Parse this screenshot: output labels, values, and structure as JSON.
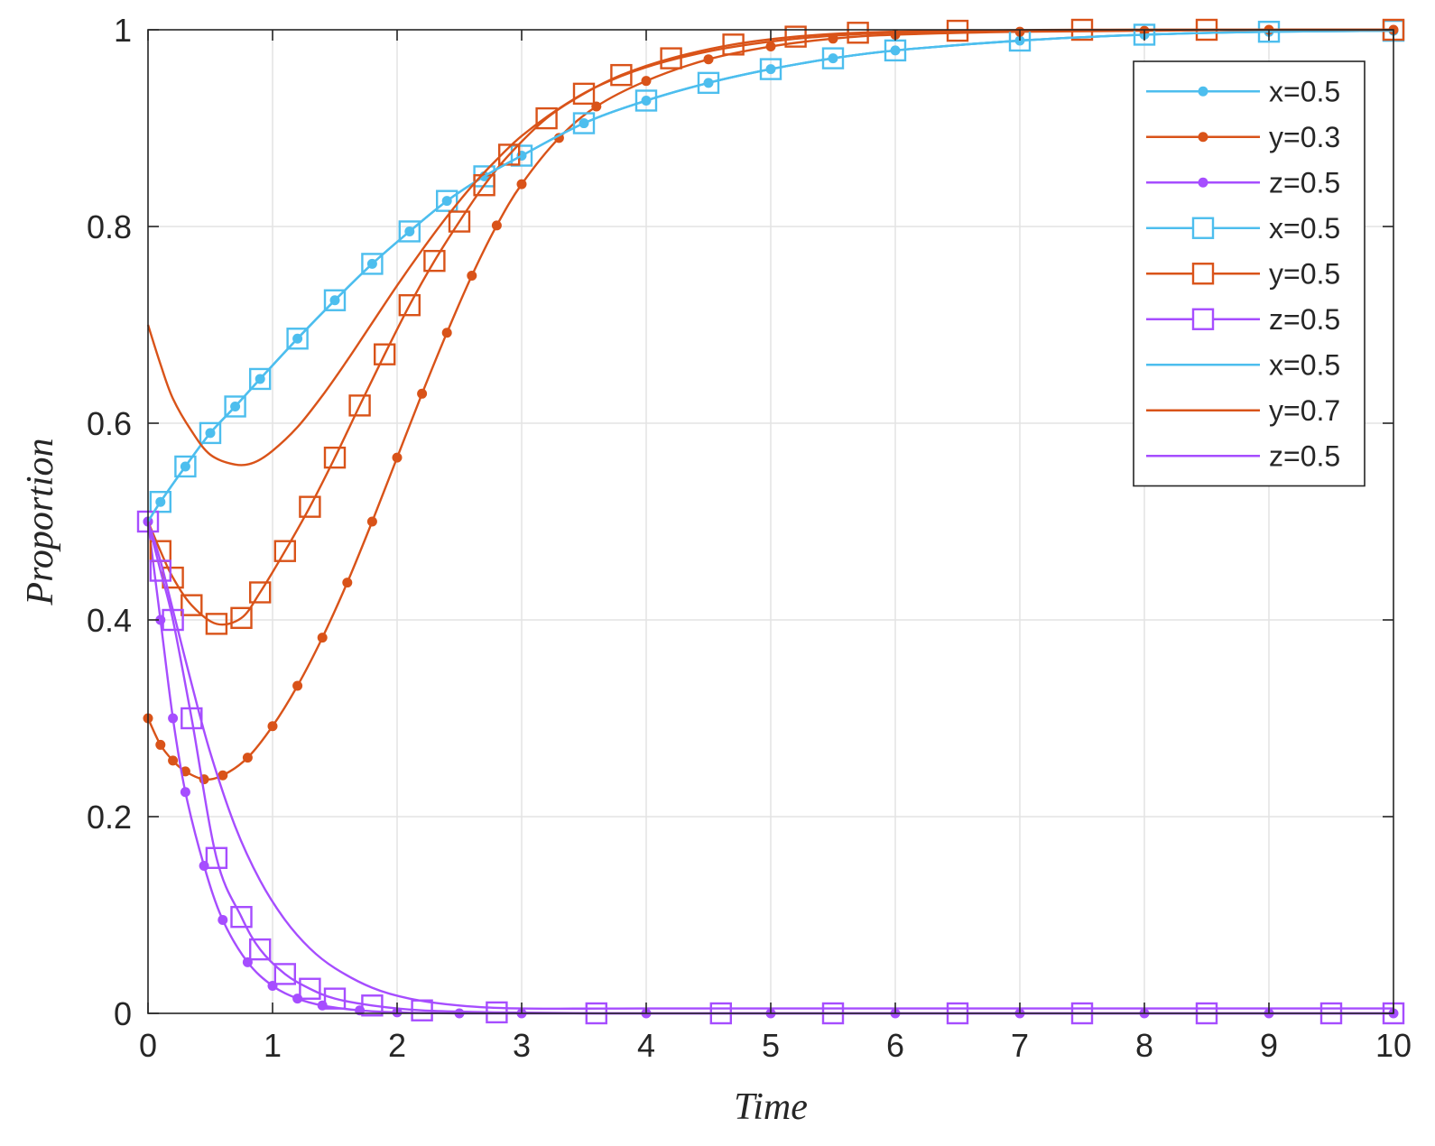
{
  "chart_data": {
    "type": "line",
    "title": "",
    "xlabel": "Time",
    "ylabel": "Proportion",
    "xlim": [
      0,
      10
    ],
    "ylim": [
      0,
      1
    ],
    "xticks": [
      0,
      1,
      2,
      3,
      4,
      5,
      6,
      7,
      8,
      9,
      10
    ],
    "yticks": [
      0,
      0.2,
      0.4,
      0.6,
      0.8,
      1
    ],
    "xtick_labels": [
      "0",
      "1",
      "2",
      "3",
      "4",
      "5",
      "6",
      "7",
      "8",
      "9",
      "10"
    ],
    "ytick_labels": [
      "0",
      "0.2",
      "0.4",
      "0.6",
      "0.8",
      "1"
    ],
    "grid": true,
    "legend_position": "top-right",
    "colors": {
      "blue": "#4DBEEE",
      "orange": "#D95319",
      "purple": "#A64DFF"
    },
    "series": [
      {
        "name": "x=0.5",
        "color": "#4DBEEE",
        "marker": "dot",
        "x": [
          0,
          0.1,
          0.3,
          0.5,
          0.7,
          0.9,
          1.2,
          1.5,
          1.8,
          2.1,
          2.4,
          2.7,
          3,
          3.5,
          4,
          4.5,
          5,
          5.5,
          6,
          7,
          8,
          9,
          10
        ],
        "y": [
          0.5,
          0.52,
          0.556,
          0.59,
          0.617,
          0.645,
          0.686,
          0.725,
          0.762,
          0.795,
          0.826,
          0.851,
          0.872,
          0.905,
          0.928,
          0.946,
          0.96,
          0.971,
          0.979,
          0.989,
          0.995,
          0.998,
          0.999
        ]
      },
      {
        "name": "y=0.3",
        "color": "#D95319",
        "marker": "dot",
        "x": [
          0,
          0.1,
          0.2,
          0.3,
          0.45,
          0.6,
          0.8,
          1,
          1.2,
          1.4,
          1.6,
          1.8,
          2,
          2.2,
          2.4,
          2.6,
          2.8,
          3,
          3.3,
          3.6,
          4,
          4.5,
          5,
          5.5,
          6,
          7,
          8,
          9,
          10
        ],
        "y": [
          0.3,
          0.273,
          0.257,
          0.246,
          0.238,
          0.242,
          0.26,
          0.292,
          0.333,
          0.382,
          0.438,
          0.5,
          0.565,
          0.63,
          0.692,
          0.75,
          0.801,
          0.843,
          0.89,
          0.922,
          0.948,
          0.97,
          0.983,
          0.991,
          0.995,
          0.998,
          0.999,
          1,
          1
        ]
      },
      {
        "name": "z=0.5",
        "color": "#A64DFF",
        "marker": "dot",
        "x": [
          0,
          0.1,
          0.2,
          0.3,
          0.45,
          0.6,
          0.8,
          1,
          1.2,
          1.4,
          1.7,
          2,
          2.5,
          3,
          4,
          5,
          6,
          7,
          8,
          9,
          10
        ],
        "y": [
          0.5,
          0.4,
          0.3,
          0.225,
          0.15,
          0.095,
          0.052,
          0.028,
          0.015,
          0.008,
          0.003,
          0.001,
          0,
          0,
          0,
          0,
          0,
          0,
          0,
          0,
          0
        ]
      },
      {
        "name": "x=0.5",
        "color": "#4DBEEE",
        "marker": "square",
        "x": [
          0,
          0.1,
          0.3,
          0.5,
          0.7,
          0.9,
          1.2,
          1.5,
          1.8,
          2.1,
          2.4,
          2.7,
          3,
          3.5,
          4,
          4.5,
          5,
          5.5,
          6,
          7,
          8,
          9,
          10
        ],
        "y": [
          0.5,
          0.52,
          0.556,
          0.59,
          0.617,
          0.645,
          0.686,
          0.725,
          0.762,
          0.795,
          0.826,
          0.851,
          0.872,
          0.905,
          0.928,
          0.946,
          0.96,
          0.971,
          0.979,
          0.989,
          0.995,
          0.998,
          0.999
        ]
      },
      {
        "name": "y=0.5",
        "color": "#D95319",
        "marker": "square",
        "x": [
          0,
          0.1,
          0.2,
          0.35,
          0.55,
          0.75,
          0.9,
          1.1,
          1.3,
          1.5,
          1.7,
          1.9,
          2.1,
          2.3,
          2.5,
          2.7,
          2.9,
          3.2,
          3.5,
          3.8,
          4.2,
          4.7,
          5.2,
          5.7,
          6.5,
          7.5,
          8.5,
          10
        ],
        "y": [
          0.5,
          0.47,
          0.443,
          0.415,
          0.396,
          0.402,
          0.428,
          0.47,
          0.515,
          0.565,
          0.618,
          0.67,
          0.72,
          0.765,
          0.805,
          0.842,
          0.873,
          0.91,
          0.935,
          0.954,
          0.971,
          0.985,
          0.993,
          0.997,
          0.999,
          1,
          1,
          1
        ]
      },
      {
        "name": "z=0.5",
        "color": "#A64DFF",
        "marker": "square",
        "x": [
          0,
          0.1,
          0.2,
          0.35,
          0.55,
          0.75,
          0.9,
          1.1,
          1.3,
          1.5,
          1.8,
          2.2,
          2.8,
          3.6,
          4.6,
          5.5,
          6.5,
          7.5,
          8.5,
          9.5,
          10
        ],
        "y": [
          0.5,
          0.45,
          0.4,
          0.3,
          0.158,
          0.098,
          0.065,
          0.04,
          0.025,
          0.015,
          0.008,
          0.003,
          0.001,
          0,
          0,
          0,
          0,
          0,
          0,
          0,
          0
        ]
      },
      {
        "name": "x=0.5",
        "color": "#4DBEEE",
        "marker": "none",
        "x": [
          0,
          0.1,
          0.3,
          0.5,
          0.7,
          0.9,
          1.2,
          1.5,
          1.8,
          2.1,
          2.4,
          2.7,
          3,
          3.5,
          4,
          4.5,
          5,
          5.5,
          6,
          7,
          8,
          9,
          10
        ],
        "y": [
          0.5,
          0.52,
          0.556,
          0.59,
          0.617,
          0.645,
          0.686,
          0.725,
          0.762,
          0.795,
          0.826,
          0.851,
          0.872,
          0.905,
          0.928,
          0.946,
          0.96,
          0.971,
          0.979,
          0.989,
          0.995,
          0.998,
          0.999
        ]
      },
      {
        "name": "y=0.7",
        "color": "#D95319",
        "marker": "none",
        "x": [
          0,
          0.1,
          0.2,
          0.35,
          0.5,
          0.7,
          0.85,
          1,
          1.2,
          1.4,
          1.6,
          1.8,
          2,
          2.2,
          2.4,
          2.6,
          2.8,
          3,
          3.3,
          3.6,
          4,
          4.5,
          5,
          5.5,
          6,
          7,
          8,
          10
        ],
        "y": [
          0.7,
          0.66,
          0.625,
          0.592,
          0.568,
          0.558,
          0.56,
          0.572,
          0.596,
          0.628,
          0.664,
          0.702,
          0.74,
          0.776,
          0.81,
          0.841,
          0.868,
          0.892,
          0.92,
          0.942,
          0.962,
          0.978,
          0.988,
          0.994,
          0.997,
          0.999,
          1,
          1
        ]
      },
      {
        "name": "z=0.5",
        "color": "#A64DFF",
        "marker": "none",
        "x": [
          0,
          0.1,
          0.2,
          0.35,
          0.5,
          0.7,
          0.9,
          1.1,
          1.3,
          1.5,
          1.8,
          2.1,
          2.5,
          3,
          4,
          5,
          6,
          8,
          10
        ],
        "y": [
          0.5,
          0.46,
          0.41,
          0.335,
          0.265,
          0.19,
          0.135,
          0.095,
          0.066,
          0.046,
          0.026,
          0.015,
          0.008,
          0.005,
          0.005,
          0.005,
          0.005,
          0.005,
          0.005
        ]
      }
    ]
  }
}
